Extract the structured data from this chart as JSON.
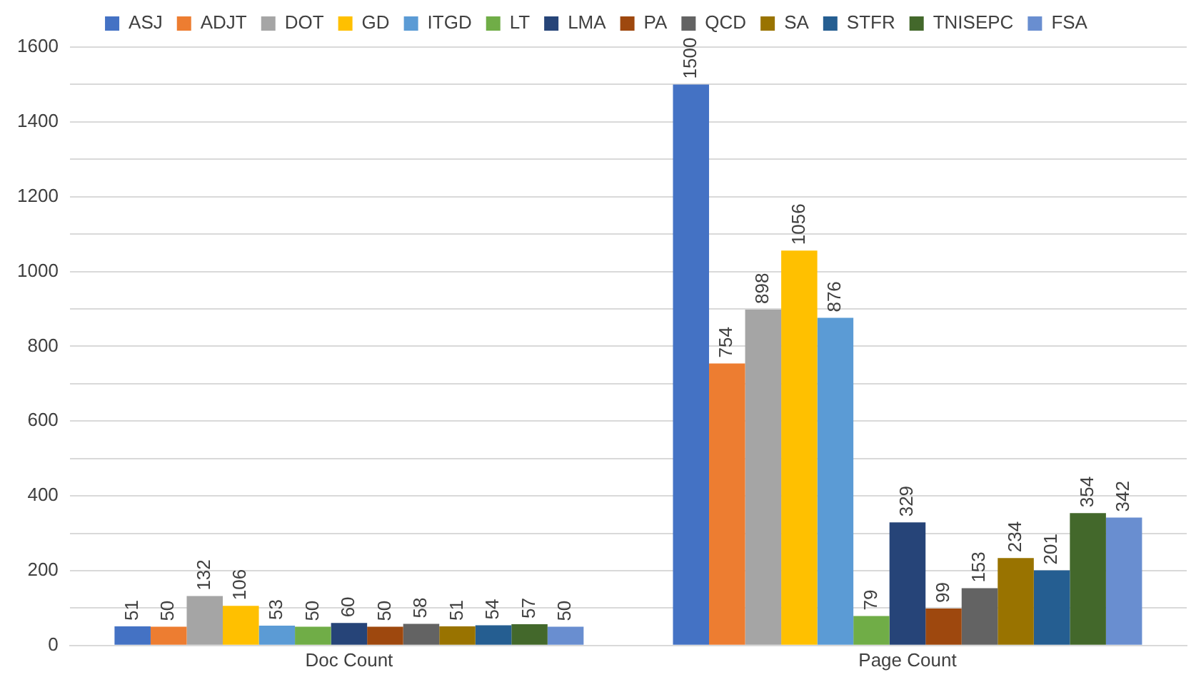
{
  "chart_data": {
    "type": "bar",
    "categories": [
      "Doc Count",
      "Page Count"
    ],
    "series": [
      {
        "name": "ASJ",
        "color": "#4472c4",
        "values": [
          51,
          1500
        ]
      },
      {
        "name": "ADJT",
        "color": "#ed7d31",
        "values": [
          50,
          754
        ]
      },
      {
        "name": "DOT",
        "color": "#a5a5a5",
        "values": [
          132,
          898
        ]
      },
      {
        "name": "GD",
        "color": "#ffc000",
        "values": [
          106,
          1056
        ]
      },
      {
        "name": "ITGD",
        "color": "#5b9bd5",
        "values": [
          53,
          876
        ]
      },
      {
        "name": "LT",
        "color": "#70ad47",
        "values": [
          50,
          79
        ]
      },
      {
        "name": "LMA",
        "color": "#264478",
        "values": [
          60,
          329
        ]
      },
      {
        "name": "PA",
        "color": "#9e480e",
        "values": [
          50,
          99
        ]
      },
      {
        "name": "QCD",
        "color": "#636363",
        "values": [
          58,
          153
        ]
      },
      {
        "name": "SA",
        "color": "#997300",
        "values": [
          51,
          234
        ]
      },
      {
        "name": "STFR",
        "color": "#255e91",
        "values": [
          54,
          201
        ]
      },
      {
        "name": "TNISEPC",
        "color": "#43682b",
        "values": [
          57,
          354
        ]
      },
      {
        "name": "FSA",
        "color": "#698ed0",
        "values": [
          50,
          342
        ]
      }
    ],
    "ylim": [
      0,
      1600
    ],
    "yticks": [
      0,
      {
        "value": 100,
        "label": null
      },
      200,
      {
        "value": 300,
        "label": null
      },
      400,
      {
        "value": 500,
        "label": null
      },
      600,
      {
        "value": 700,
        "label": null
      },
      800,
      {
        "value": 900,
        "label": null
      },
      1000,
      {
        "value": 1100,
        "label": null
      },
      1200,
      {
        "value": 1300,
        "label": null
      },
      1400,
      {
        "value": 1500,
        "label": null
      },
      1600
    ],
    "grid": "y",
    "legend": "top",
    "data_labels": true
  }
}
